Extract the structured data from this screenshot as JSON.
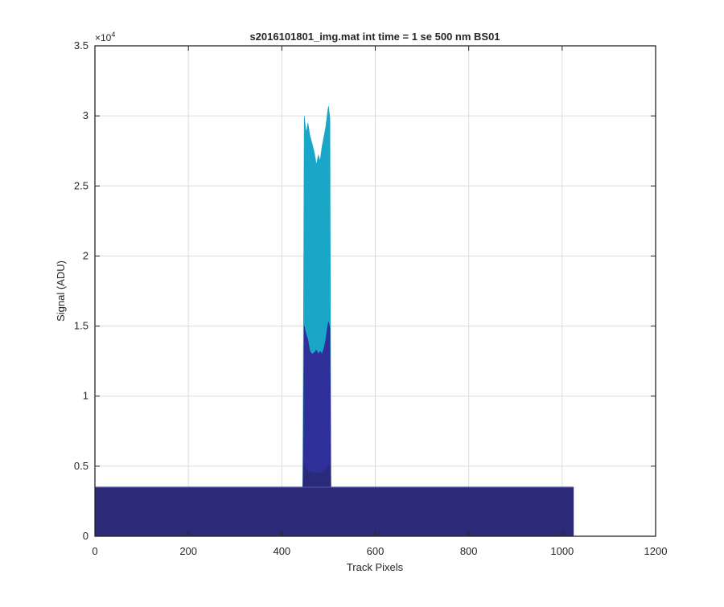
{
  "chart_data": {
    "type": "area",
    "title": "s2016101801_img.mat int time = 1 se  500 nm BS01",
    "xlabel": "Track Pixels",
    "ylabel": "Signal (ADU)",
    "xlim": [
      0,
      1200
    ],
    "ylim": [
      0,
      35000
    ],
    "xticks": [
      0,
      200,
      400,
      600,
      800,
      1000,
      1200
    ],
    "yticks": [
      0,
      5000,
      10000,
      15000,
      20000,
      25000,
      30000,
      35000
    ],
    "xtick_labels": [
      "0",
      "200",
      "400",
      "600",
      "800",
      "1000",
      "1200"
    ],
    "ytick_labels": [
      "0",
      "0.5",
      "1",
      "1.5",
      "2",
      "2.5",
      "3",
      "3.5"
    ],
    "y_exponent_label": "×10",
    "y_exponent_power": "4",
    "grid": true,
    "series": [
      {
        "color": "#1aa6c7",
        "x": [
          0,
          440,
          445,
          448,
          452,
          456,
          460,
          465,
          470,
          474,
          478,
          482,
          486,
          490,
          494,
          498,
          500,
          503,
          505,
          1024
        ],
        "values": [
          3500,
          3500,
          3500,
          30000,
          28800,
          29500,
          28600,
          28000,
          27300,
          26500,
          27200,
          26800,
          27800,
          28500,
          29200,
          30300,
          30700,
          29800,
          3500,
          3500
        ]
      },
      {
        "color": "#2f2f9a",
        "x": [
          0,
          440,
          445,
          448,
          452,
          456,
          460,
          465,
          470,
          474,
          478,
          482,
          486,
          490,
          494,
          498,
          500,
          503,
          505,
          1024
        ],
        "values": [
          3500,
          3500,
          3500,
          15000,
          14400,
          14000,
          13200,
          13000,
          13100,
          13300,
          13000,
          13200,
          13000,
          13400,
          14000,
          15000,
          15300,
          14800,
          3500,
          3500
        ]
      },
      {
        "color": "#2a2a78",
        "x": [
          0,
          440,
          445,
          448,
          452,
          460,
          470,
          480,
          490,
          498,
          503,
          505,
          1024
        ],
        "values": [
          3500,
          3500,
          3500,
          5200,
          4800,
          4600,
          4500,
          4500,
          4600,
          4900,
          5100,
          3500,
          3500
        ]
      }
    ],
    "baseline": {
      "color": "#5050a8",
      "x_start": 0,
      "x_end": 1024,
      "value": 3500
    }
  }
}
